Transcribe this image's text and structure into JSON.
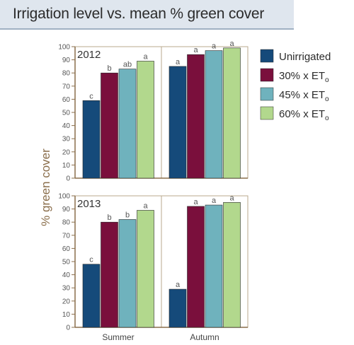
{
  "title": "Irrigation level vs. mean % green cover",
  "colors": {
    "axis": "#8a6e4b",
    "grid": "#b8a88c"
  },
  "chart_data": {
    "type": "bar",
    "ylabel": "% green cover",
    "ylim": [
      0,
      100
    ],
    "yticks": [
      0,
      10,
      20,
      30,
      40,
      50,
      60,
      70,
      80,
      90,
      100
    ],
    "categories": [
      "Summer",
      "Autumn"
    ],
    "legend": {
      "position": "right",
      "entries": [
        {
          "label": "Unirrigated",
          "sub": "",
          "color": "#154a7a"
        },
        {
          "label": "30% x ET",
          "sub": "o",
          "color": "#7a0f3c"
        },
        {
          "label": "45% x ET",
          "sub": "o",
          "color": "#6fb2bd"
        },
        {
          "label": "60% x ET",
          "sub": "o",
          "color": "#b2d88d"
        }
      ]
    },
    "panels": [
      {
        "year": "2012",
        "series": [
          {
            "name": "Unirrigated",
            "values": [
              59,
              85
            ],
            "letters": [
              "c",
              "a"
            ]
          },
          {
            "name": "30% x ETo",
            "values": [
              80,
              94
            ],
            "letters": [
              "b",
              "a"
            ]
          },
          {
            "name": "45% x ETo",
            "values": [
              83,
              97
            ],
            "letters": [
              "ab",
              "a"
            ]
          },
          {
            "name": "60% x ETo",
            "values": [
              89,
              99
            ],
            "letters": [
              "a",
              "a"
            ]
          }
        ]
      },
      {
        "year": "2013",
        "series": [
          {
            "name": "Unirrigated",
            "values": [
              48,
              29
            ],
            "letters": [
              "c",
              "a"
            ]
          },
          {
            "name": "30% x ETo",
            "values": [
              80,
              92
            ],
            "letters": [
              "b",
              "a"
            ]
          },
          {
            "name": "45% x ETo",
            "values": [
              82,
              93
            ],
            "letters": [
              "b",
              "a"
            ]
          },
          {
            "name": "60% x ETo",
            "values": [
              89,
              95
            ],
            "letters": [
              "a",
              "a"
            ]
          }
        ]
      }
    ]
  }
}
